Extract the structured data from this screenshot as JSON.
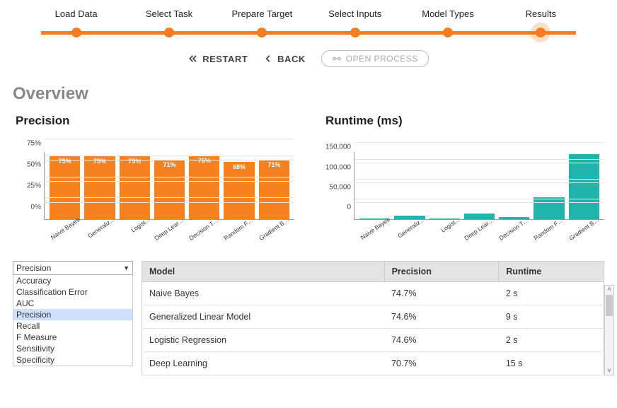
{
  "stepper": {
    "steps": [
      "Load Data",
      "Select Task",
      "Prepare Target",
      "Select Inputs",
      "Model Types",
      "Results"
    ],
    "active_index": 5,
    "line_color": "#f57c1f",
    "dot_color": "#f57c1f"
  },
  "nav": {
    "restart_label": "RESTART",
    "back_label": "BACK",
    "open_process_label": "OPEN PROCESS"
  },
  "overview_title": "Overview",
  "precision_chart": {
    "type": "bar",
    "title": "Precision",
    "categories": [
      "Naive Bayes",
      "Generaliz...",
      "Logist...",
      "Deep Learning",
      "Decision Tree",
      "Random Forest",
      "Gradient Boost..."
    ],
    "values": [
      75,
      75,
      75,
      71,
      76,
      68,
      71
    ],
    "value_labels": [
      "75%",
      "75%",
      "75%",
      "71%",
      "76%",
      "68%",
      "71%"
    ],
    "bar_color": "#f5821f",
    "ylim": [
      0,
      80
    ],
    "yticks": [
      0,
      25,
      50,
      75
    ],
    "ytick_labels": [
      "0%",
      "25%",
      "50%",
      "75%"
    ],
    "label_fontsize": 9,
    "background_color": "#ffffff",
    "grid_color": "#e6e6e6"
  },
  "runtime_chart": {
    "type": "bar",
    "title": "Runtime (ms)",
    "categories": [
      "Naive Bayes",
      "Generaliz...",
      "Logist...",
      "Deep Learning",
      "Decision Tree",
      "Random Forest",
      "Gradient Boost..."
    ],
    "values": [
      2000,
      9000,
      2000,
      15000,
      6000,
      55000,
      165000
    ],
    "bar_color": "#1fb5ad",
    "ylim": [
      0,
      170000
    ],
    "yticks": [
      0,
      50000,
      100000,
      150000
    ],
    "ytick_labels": [
      "0",
      "50,000",
      "100,000",
      "150,000"
    ],
    "background_color": "#ffffff",
    "grid_color": "#e6e6e6"
  },
  "metric_dropdown": {
    "selected": "Precision",
    "options": [
      "Accuracy",
      "Classification Error",
      "AUC",
      "Precision",
      "Recall",
      "F Measure",
      "Sensitivity",
      "Specificity"
    ]
  },
  "results_table": {
    "columns": [
      "Model",
      "Precision",
      "Runtime"
    ],
    "rows": [
      [
        "Naive Bayes",
        "74.7%",
        "2 s"
      ],
      [
        "Generalized Linear Model",
        "74.6%",
        "9 s"
      ],
      [
        "Logistic Regression",
        "74.6%",
        "2 s"
      ],
      [
        "Deep Learning",
        "70.7%",
        "15 s"
      ]
    ]
  }
}
